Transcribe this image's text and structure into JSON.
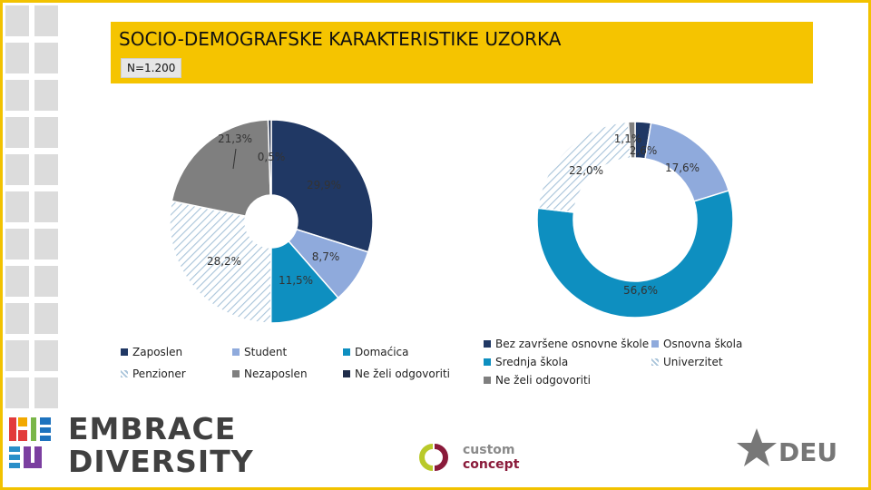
{
  "header": {
    "title": "SOCIO-DEMOGRAFSKE KARAKTERISTIKE UZORKA",
    "sample_size": "N=1.200"
  },
  "colors": {
    "header_band": "#f5c400",
    "navy": "#203864",
    "light_blue": "#8faadc",
    "teal": "#0e8fc0",
    "dark_navy": "#1f2d4a",
    "gray": "#7f7f7f",
    "hatch": "#a9c4da"
  },
  "chart_data": [
    {
      "type": "pie",
      "title": "",
      "slices": [
        {
          "name": "Zaposlen",
          "value": 29.9,
          "label": "29,9%",
          "color": "#203864",
          "pattern": "solid"
        },
        {
          "name": "Student",
          "value": 8.7,
          "label": "8,7%",
          "color": "#8faadc",
          "pattern": "solid"
        },
        {
          "name": "Domaćica",
          "value": 11.5,
          "label": "11,5%",
          "color": "#0e8fc0",
          "pattern": "solid"
        },
        {
          "name": "Penzioner",
          "value": 28.2,
          "label": "28,2%",
          "color": "#a9c4da",
          "pattern": "hatch"
        },
        {
          "name": "Nezaposlen",
          "value": 21.3,
          "label": "21,3%",
          "color": "#7f7f7f",
          "pattern": "solid"
        },
        {
          "name": "Ne želi odgovoriti",
          "value": 0.5,
          "label": "0,5%",
          "color": "#1f2d4a",
          "pattern": "solid"
        }
      ],
      "legend": [
        [
          "Zaposlen",
          "Student",
          "Domaćica"
        ],
        [
          "Penzioner",
          "Nezaposlen",
          "Ne želi odgovoriti"
        ]
      ]
    },
    {
      "type": "pie",
      "title": "",
      "slices": [
        {
          "name": "Bez završene osnovne škole",
          "value": 2.6,
          "label": "2,6%",
          "color": "#203864",
          "pattern": "solid"
        },
        {
          "name": "Osnovna škola",
          "value": 17.6,
          "label": "17,6%",
          "color": "#8faadc",
          "pattern": "solid"
        },
        {
          "name": "Srednja škola",
          "value": 56.6,
          "label": "56,6%",
          "color": "#0e8fc0",
          "pattern": "solid"
        },
        {
          "name": "Univerzitet",
          "value": 22.0,
          "label": "22,0%",
          "color": "#a9c4da",
          "pattern": "hatch"
        },
        {
          "name": "Ne želi odgovoriti",
          "value": 1.1,
          "label": "1,1%",
          "color": "#7f7f7f",
          "pattern": "solid"
        }
      ],
      "legend": [
        [
          "Bez završene osnovne škole",
          "Osnovna škola"
        ],
        [
          "Srednja škola",
          "Univerzitet"
        ],
        [
          "Ne želi odgovoriti"
        ]
      ]
    }
  ],
  "logos": {
    "embrace_line1": "EMBRACE",
    "embrace_line2": "DIVERSITY",
    "custom_line1": "custom",
    "custom_line2": "concept",
    "deu": "DEU"
  }
}
